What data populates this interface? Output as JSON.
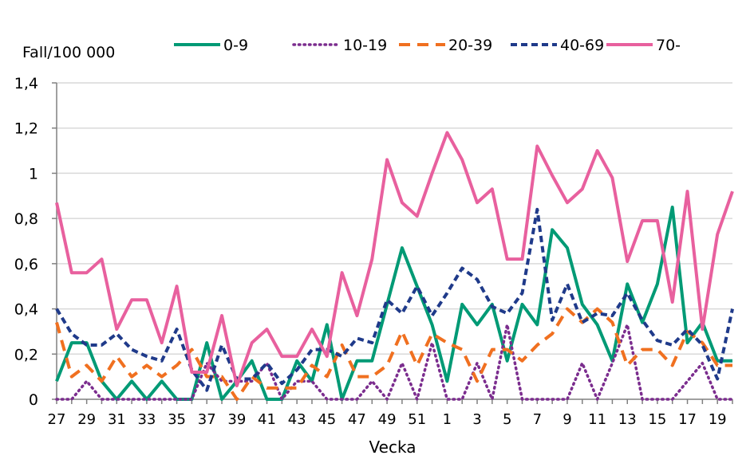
{
  "chart_data": {
    "type": "line",
    "ylabel": "Fall/100 000",
    "xlabel": "Vecka",
    "ylim": [
      0,
      1.4
    ],
    "yticks": [
      "0",
      "0,2",
      "0,4",
      "0,6",
      "0,8",
      "1",
      "1,2",
      "1,4"
    ],
    "grid": true,
    "legend_position": "top",
    "x": [
      "27",
      "28",
      "29",
      "30",
      "31",
      "32",
      "33",
      "34",
      "35",
      "36",
      "37",
      "38",
      "39",
      "40",
      "41",
      "42",
      "43",
      "44",
      "45",
      "46",
      "47",
      "48",
      "49",
      "50",
      "51",
      "52",
      "1",
      "2",
      "3",
      "4",
      "5",
      "6",
      "7",
      "8",
      "9",
      "10",
      "11",
      "12",
      "13",
      "14",
      "15",
      "16",
      "17",
      "18",
      "19",
      "20"
    ],
    "xtick_labels": [
      "27",
      "29",
      "31",
      "33",
      "35",
      "37",
      "39",
      "41",
      "43",
      "45",
      "47",
      "49",
      "51",
      "1",
      "3",
      "5",
      "7",
      "9",
      "11",
      "13",
      "15",
      "17",
      "19"
    ],
    "series": [
      {
        "name": "0-9",
        "color": "#009a75",
        "style": "solid",
        "values": [
          0.08,
          0.25,
          0.25,
          0.08,
          0,
          0.08,
          0,
          0.08,
          0,
          0,
          0.25,
          0,
          0.08,
          0.17,
          0,
          0,
          0.17,
          0.08,
          0.33,
          0,
          0.17,
          0.17,
          0.42,
          0.67,
          0.5,
          0.33,
          0.08,
          0.42,
          0.33,
          0.42,
          0.17,
          0.42,
          0.33,
          0.75,
          0.67,
          0.42,
          0.33,
          0.17,
          0.51,
          0.34,
          0.51,
          0.85,
          0.25,
          0.34,
          0.17,
          0.17
        ]
      },
      {
        "name": "10-19",
        "color": "#7b2d8e",
        "style": "dotted",
        "values": [
          0,
          0,
          0.08,
          0,
          0,
          0,
          0,
          0,
          0,
          0,
          0.16,
          0.08,
          0.08,
          0.08,
          0.16,
          0,
          0.08,
          0.08,
          0,
          0,
          0,
          0.08,
          0,
          0.16,
          0,
          0.25,
          0,
          0,
          0.16,
          0,
          0.33,
          0,
          0,
          0,
          0,
          0.16,
          0,
          0.16,
          0.33,
          0,
          0,
          0,
          0.08,
          0.16,
          0,
          0
        ]
      },
      {
        "name": "20-39",
        "color": "#f07020",
        "style": "dashed",
        "values": [
          0.34,
          0.1,
          0.15,
          0.08,
          0.19,
          0.1,
          0.15,
          0.1,
          0.15,
          0.22,
          0.1,
          0.1,
          0,
          0.1,
          0.05,
          0.05,
          0.05,
          0.15,
          0.1,
          0.24,
          0.1,
          0.1,
          0.15,
          0.3,
          0.15,
          0.29,
          0.25,
          0.22,
          0.08,
          0.22,
          0.22,
          0.17,
          0.24,
          0.29,
          0.4,
          0.34,
          0.4,
          0.34,
          0.15,
          0.22,
          0.22,
          0.15,
          0.3,
          0.25,
          0.15,
          0.15
        ]
      },
      {
        "name": "40-69",
        "color": "#1f3a8a",
        "style": "short-dashed",
        "values": [
          0.4,
          0.29,
          0.24,
          0.24,
          0.29,
          0.22,
          0.19,
          0.17,
          0.31,
          0.13,
          0.04,
          0.24,
          0.09,
          0.09,
          0.16,
          0.07,
          0.13,
          0.22,
          0.22,
          0.19,
          0.27,
          0.25,
          0.44,
          0.38,
          0.5,
          0.37,
          0.47,
          0.58,
          0.53,
          0.41,
          0.38,
          0.47,
          0.84,
          0.35,
          0.51,
          0.34,
          0.38,
          0.37,
          0.47,
          0.35,
          0.26,
          0.24,
          0.31,
          0.24,
          0.09,
          0.4
        ]
      },
      {
        "name": "70-",
        "color": "#e8609e",
        "style": "solid",
        "values": [
          0.87,
          0.56,
          0.56,
          0.62,
          0.31,
          0.44,
          0.44,
          0.25,
          0.5,
          0.12,
          0.12,
          0.37,
          0.06,
          0.25,
          0.31,
          0.19,
          0.19,
          0.31,
          0.19,
          0.56,
          0.37,
          0.62,
          1.06,
          0.87,
          0.81,
          1.0,
          1.18,
          1.06,
          0.87,
          0.93,
          0.62,
          0.62,
          1.12,
          0.99,
          0.87,
          0.93,
          1.1,
          0.98,
          0.61,
          0.79,
          0.79,
          0.43,
          0.92,
          0.31,
          0.73,
          0.92
        ]
      }
    ]
  }
}
